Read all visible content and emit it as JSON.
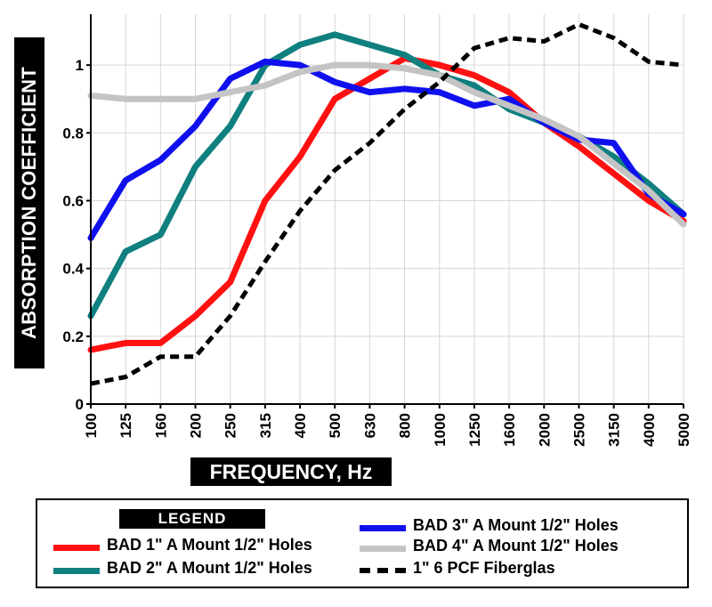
{
  "chart_data": {
    "type": "line",
    "title": "",
    "xlabel": "FREQUENCY, Hz",
    "ylabel": "ABSORPTION COEFFICIENT",
    "x": [
      "100",
      "125",
      "160",
      "200",
      "250",
      "315",
      "400",
      "500",
      "630",
      "800",
      "1000",
      "1250",
      "1600",
      "2000",
      "2500",
      "3150",
      "4000",
      "5000"
    ],
    "y_ticks": [
      "0",
      "0.2",
      "0.4",
      "0.6",
      "0.8",
      "1"
    ],
    "ylim": [
      0,
      1.15
    ],
    "grid": true,
    "legend_title": "LEGEND",
    "legend_position": "bottom",
    "series": [
      {
        "name": "BAD 1\" A Mount 1/2\" Holes",
        "color": "#ff1111",
        "style": "solid",
        "values": [
          0.16,
          0.18,
          0.18,
          0.26,
          0.36,
          0.6,
          0.73,
          0.9,
          0.96,
          1.02,
          1.0,
          0.97,
          0.92,
          0.83,
          0.76,
          0.68,
          0.6,
          0.54
        ]
      },
      {
        "name": "BAD 2\" A Mount 1/2\" Holes",
        "color": "#0f7f7f",
        "style": "solid",
        "values": [
          0.26,
          0.45,
          0.5,
          0.7,
          0.82,
          1.0,
          1.06,
          1.09,
          1.06,
          1.03,
          0.97,
          0.94,
          0.87,
          0.83,
          0.79,
          0.73,
          0.65,
          0.56
        ]
      },
      {
        "name": "BAD 3\" A Mount 1/2\" Holes",
        "color": "#1010ee",
        "style": "solid",
        "values": [
          0.49,
          0.66,
          0.72,
          0.82,
          0.96,
          1.01,
          1.0,
          0.95,
          0.92,
          0.93,
          0.92,
          0.88,
          0.9,
          0.83,
          0.78,
          0.77,
          0.62,
          0.56
        ]
      },
      {
        "name": "BAD 4\" A Mount 1/2\" Holes",
        "color": "#c4c4c4",
        "style": "solid",
        "values": [
          0.91,
          0.9,
          0.9,
          0.9,
          0.92,
          0.94,
          0.98,
          1.0,
          1.0,
          0.99,
          0.97,
          0.92,
          0.88,
          0.84,
          0.79,
          0.71,
          0.63,
          0.53
        ]
      },
      {
        "name": "1\" 6 PCF Fiberglas",
        "color": "#000000",
        "style": "dashed",
        "values": [
          0.06,
          0.08,
          0.14,
          0.14,
          0.26,
          0.42,
          0.57,
          0.69,
          0.77,
          0.87,
          0.95,
          1.05,
          1.08,
          1.07,
          1.12,
          1.08,
          1.01,
          1.0
        ]
      }
    ]
  }
}
